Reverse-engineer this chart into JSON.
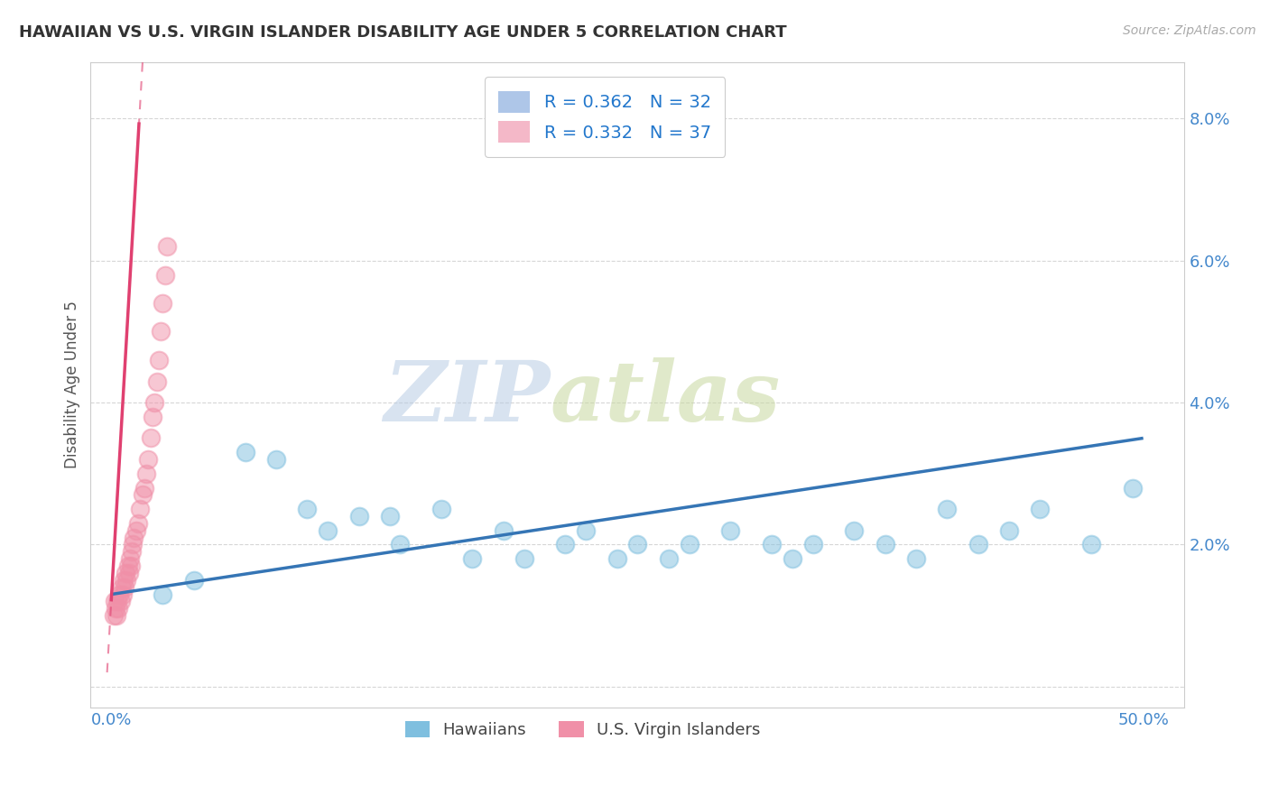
{
  "title": "HAWAIIAN VS U.S. VIRGIN ISLANDER DISABILITY AGE UNDER 5 CORRELATION CHART",
  "source": "Source: ZipAtlas.com",
  "ylabel": "Disability Age Under 5",
  "y_ticks": [
    0.0,
    2.0,
    4.0,
    6.0,
    8.0
  ],
  "y_tick_labels": [
    "",
    "2.0%",
    "4.0%",
    "6.0%",
    "8.0%"
  ],
  "x_tick_labels": [
    "0.0%",
    "50.0%"
  ],
  "hawaiian_color": "#7fbfdf",
  "usvi_color": "#f090a8",
  "trendline_hawaiian_color": "#3575b5",
  "trendline_usvi_color": "#e04070",
  "hawaiian_x": [
    2.5,
    4.0,
    6.5,
    8.0,
    9.5,
    10.5,
    12.0,
    13.5,
    14.0,
    16.0,
    17.5,
    19.0,
    20.0,
    22.0,
    23.0,
    24.5,
    25.5,
    27.0,
    28.0,
    30.0,
    32.0,
    33.0,
    34.0,
    36.0,
    37.5,
    39.0,
    40.5,
    42.0,
    43.5,
    45.0,
    47.5,
    49.5
  ],
  "hawaiian_y": [
    1.3,
    1.5,
    3.3,
    3.2,
    2.5,
    2.2,
    2.4,
    2.4,
    2.0,
    2.5,
    1.8,
    2.2,
    1.8,
    2.0,
    2.2,
    1.8,
    2.0,
    1.8,
    2.0,
    2.2,
    2.0,
    1.8,
    2.0,
    2.2,
    2.0,
    1.8,
    2.5,
    2.0,
    2.2,
    2.5,
    2.0,
    2.8
  ],
  "usvi_x": [
    0.1,
    0.15,
    0.2,
    0.25,
    0.3,
    0.35,
    0.4,
    0.45,
    0.5,
    0.55,
    0.6,
    0.65,
    0.7,
    0.75,
    0.8,
    0.85,
    0.9,
    0.95,
    1.0,
    1.05,
    1.1,
    1.2,
    1.3,
    1.4,
    1.5,
    1.6,
    1.7,
    1.8,
    1.9,
    2.0,
    2.1,
    2.2,
    2.3,
    2.4,
    2.5,
    2.6,
    2.7
  ],
  "usvi_y": [
    1.0,
    1.2,
    1.1,
    1.0,
    1.2,
    1.1,
    1.3,
    1.2,
    1.4,
    1.3,
    1.5,
    1.4,
    1.6,
    1.5,
    1.7,
    1.6,
    1.8,
    1.7,
    1.9,
    2.0,
    2.1,
    2.2,
    2.3,
    2.5,
    2.7,
    2.8,
    3.0,
    3.2,
    3.5,
    3.8,
    4.0,
    4.3,
    4.6,
    5.0,
    5.4,
    5.8,
    6.2
  ]
}
